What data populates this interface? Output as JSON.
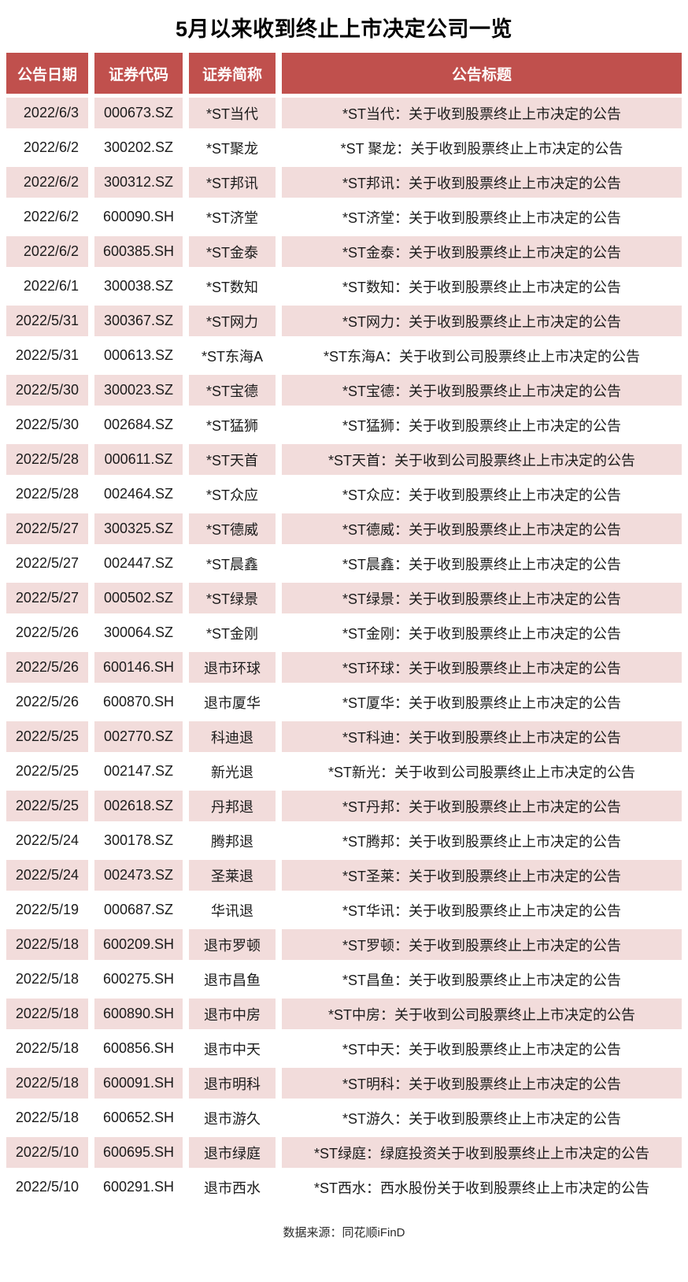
{
  "title": "5月以来收到终止上市决定公司一览",
  "source_note": "数据来源：同花顺iFinD",
  "colors": {
    "header_bg": "#C0504D",
    "row_alt_bg": "#F2DCDB",
    "header_text": "#FFFFFF",
    "body_text": "#1B1B1B"
  },
  "chart_data": {
    "type": "table",
    "title": "5月以来收到终止上市决定公司一览",
    "columns": [
      "公告日期",
      "证券代码",
      "证券简称",
      "公告标题"
    ],
    "rows": [
      [
        "2022/6/3",
        "000673.SZ",
        "*ST当代",
        "*ST当代：关于收到股票终止上市决定的公告"
      ],
      [
        "2022/6/2",
        "300202.SZ",
        "*ST聚龙",
        "*ST 聚龙：关于收到股票终止上市决定的公告"
      ],
      [
        "2022/6/2",
        "300312.SZ",
        "*ST邦讯",
        "*ST邦讯：关于收到股票终止上市决定的公告"
      ],
      [
        "2022/6/2",
        "600090.SH",
        "*ST济堂",
        "*ST济堂：关于收到股票终止上市决定的公告"
      ],
      [
        "2022/6/2",
        "600385.SH",
        "*ST金泰",
        "*ST金泰：关于收到股票终止上市决定的公告"
      ],
      [
        "2022/6/1",
        "300038.SZ",
        "*ST数知",
        "*ST数知：关于收到股票终止上市决定的公告"
      ],
      [
        "2022/5/31",
        "300367.SZ",
        "*ST网力",
        "*ST网力：关于收到股票终止上市决定的公告"
      ],
      [
        "2022/5/31",
        "000613.SZ",
        "*ST东海A",
        "*ST东海A：关于收到公司股票终止上市决定的公告"
      ],
      [
        "2022/5/30",
        "300023.SZ",
        "*ST宝德",
        "*ST宝德：关于收到股票终止上市决定的公告"
      ],
      [
        "2022/5/30",
        "002684.SZ",
        "*ST猛狮",
        "*ST猛狮：关于收到股票终止上市决定的公告"
      ],
      [
        "2022/5/28",
        "000611.SZ",
        "*ST天首",
        "*ST天首：关于收到公司股票终止上市决定的公告"
      ],
      [
        "2022/5/28",
        "002464.SZ",
        "*ST众应",
        "*ST众应：关于收到股票终止上市决定的公告"
      ],
      [
        "2022/5/27",
        "300325.SZ",
        "*ST德威",
        "*ST德威：关于收到股票终止上市决定的公告"
      ],
      [
        "2022/5/27",
        "002447.SZ",
        "*ST晨鑫",
        "*ST晨鑫：关于收到股票终止上市决定的公告"
      ],
      [
        "2022/5/27",
        "000502.SZ",
        "*ST绿景",
        "*ST绿景：关于收到股票终止上市决定的公告"
      ],
      [
        "2022/5/26",
        "300064.SZ",
        "*ST金刚",
        "*ST金刚：关于收到股票终止上市决定的公告"
      ],
      [
        "2022/5/26",
        "600146.SH",
        "退市环球",
        "*ST环球：关于收到股票终止上市决定的公告"
      ],
      [
        "2022/5/26",
        "600870.SH",
        "退市厦华",
        "*ST厦华：关于收到股票终止上市决定的公告"
      ],
      [
        "2022/5/25",
        "002770.SZ",
        "科迪退",
        "*ST科迪：关于收到股票终止上市决定的公告"
      ],
      [
        "2022/5/25",
        "002147.SZ",
        "新光退",
        "*ST新光：关于收到公司股票终止上市决定的公告"
      ],
      [
        "2022/5/25",
        "002618.SZ",
        "丹邦退",
        "*ST丹邦：关于收到股票终止上市决定的公告"
      ],
      [
        "2022/5/24",
        "300178.SZ",
        "腾邦退",
        "*ST腾邦：关于收到股票终止上市决定的公告"
      ],
      [
        "2022/5/24",
        "002473.SZ",
        "圣莱退",
        "*ST圣莱：关于收到股票终止上市决定的公告"
      ],
      [
        "2022/5/19",
        "000687.SZ",
        "华讯退",
        "*ST华讯：关于收到股票终止上市决定的公告"
      ],
      [
        "2022/5/18",
        "600209.SH",
        "退市罗顿",
        "*ST罗顿：关于收到股票终止上市决定的公告"
      ],
      [
        "2022/5/18",
        "600275.SH",
        "退市昌鱼",
        "*ST昌鱼：关于收到股票终止上市决定的公告"
      ],
      [
        "2022/5/18",
        "600890.SH",
        "退市中房",
        "*ST中房：关于收到公司股票终止上市决定的公告"
      ],
      [
        "2022/5/18",
        "600856.SH",
        "退市中天",
        "*ST中天：关于收到股票终止上市决定的公告"
      ],
      [
        "2022/5/18",
        "600091.SH",
        "退市明科",
        "*ST明科：关于收到股票终止上市决定的公告"
      ],
      [
        "2022/5/18",
        "600652.SH",
        "退市游久",
        "*ST游久：关于收到股票终止上市决定的公告"
      ],
      [
        "2022/5/10",
        "600695.SH",
        "退市绿庭",
        "*ST绿庭：绿庭投资关于收到股票终止上市决定的公告"
      ],
      [
        "2022/5/10",
        "600291.SH",
        "退市西水",
        "*ST西水：西水股份关于收到股票终止上市决定的公告"
      ]
    ],
    "layout": {
      "zebra_striping": true,
      "first_data_row_shaded": true,
      "column_alignments": [
        "right",
        "center",
        "center",
        "center"
      ]
    }
  }
}
